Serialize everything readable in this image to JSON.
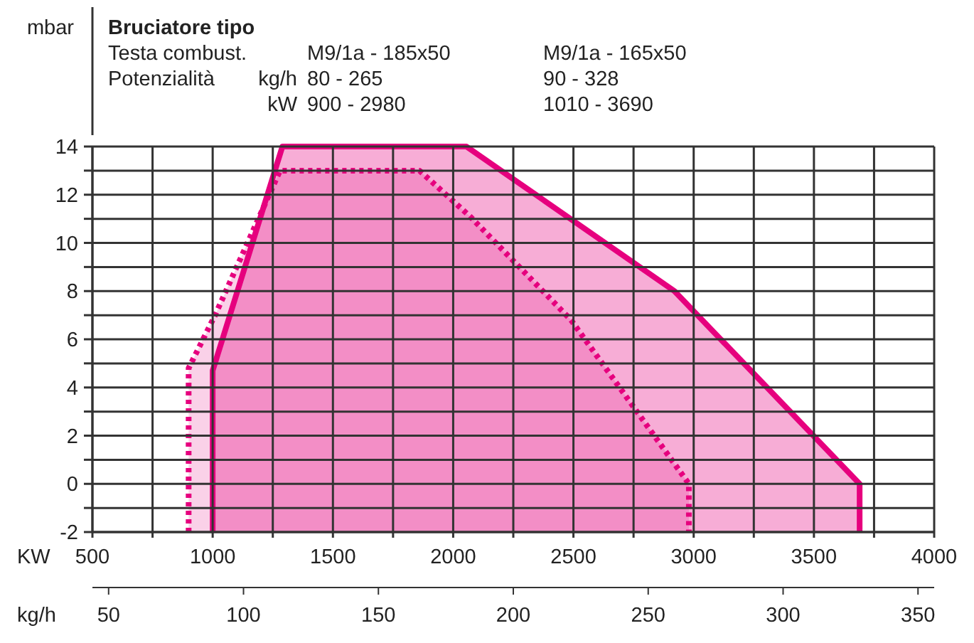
{
  "chart_data": {
    "type": "area",
    "title": "Bruciatore tipo",
    "annotations": [
      "Testa combust.",
      "M9/1a - 185x50",
      "M9/1a - 165x50",
      "Potenzialità",
      "kg/h",
      "80 - 265",
      "90 - 328",
      "kW",
      "900 - 2980",
      "1010 - 3690"
    ],
    "xlabel": "KW",
    "ylabel": "mbar",
    "x2label": "kg/h",
    "series": [
      {
        "color": "#e6007e",
        "line_style": "dotted",
        "x": [
          900,
          900,
          1010,
          1280,
          1860,
          2070,
          2490,
          2980,
          2980
        ],
        "values": [
          -2,
          4.8,
          7,
          13,
          13,
          11.1,
          6.8,
          0,
          -2
        ]
      },
      {
        "color": "#e6007e",
        "line_style": "solid",
        "x": [
          1000,
          1000,
          1290,
          2055,
          2920,
          3690,
          3690
        ],
        "values": [
          -2,
          4.7,
          14,
          14,
          8,
          0,
          -2
        ]
      }
    ],
    "xlim": [
      500,
      4000
    ],
    "ylim": [
      -2,
      14
    ],
    "xticks": [
      500,
      {
        "value": 750,
        "label": null
      },
      1000,
      {
        "value": 1250,
        "label": null
      },
      1500,
      {
        "value": 1750,
        "label": null
      },
      2000,
      {
        "value": 2250,
        "label": null
      },
      2500,
      {
        "value": 2750,
        "label": null
      },
      3000,
      {
        "value": 3250,
        "label": null
      },
      3500,
      {
        "value": 3750,
        "label": null
      },
      4000
    ],
    "yticks": [
      -2,
      {
        "value": -1,
        "label": null
      },
      0,
      {
        "value": 1,
        "label": null
      },
      2,
      {
        "value": 3,
        "label": null
      },
      4,
      {
        "value": 5,
        "label": null
      },
      6,
      {
        "value": 7,
        "label": null
      },
      8,
      {
        "value": 9,
        "label": null
      },
      10,
      {
        "value": 11,
        "label": null
      },
      12,
      {
        "value": 13,
        "label": null
      },
      14
    ],
    "x2lim": [
      44,
      356
    ],
    "x2ticks": [
      50,
      100,
      150,
      200,
      250,
      300,
      350
    ],
    "grid": true
  }
}
